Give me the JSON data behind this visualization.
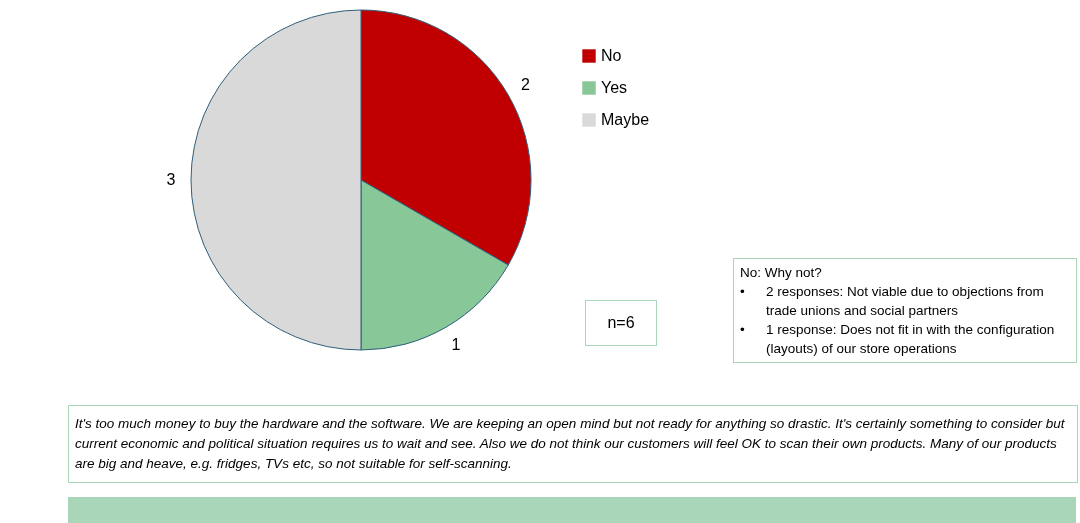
{
  "chart_data": {
    "type": "pie",
    "categories": [
      "No",
      "Yes",
      "Maybe"
    ],
    "values": [
      2,
      1,
      3
    ],
    "colors": [
      "#c00000",
      "#88c797",
      "#d9d9d9"
    ],
    "data_labels": true,
    "legend": "right",
    "annotations": [
      "n=6",
      "No: Why not?\n•\t2 responses: Not viable due to objections from trade unions and social partners\n•\t1 response: Does not fit in with the configuration (layouts) of our store operations",
      "It's too much money to buy the hardware and the software. We are keeping an open mind but not ready for anything so drastic. It's certainly something to consider but current economic and political situation requires us to wait and see. Also we do not think our customers will feel OK to scan their own products. Many of our products are big and heave, e.g. fridges, TVs etc, so not suitable for self-scanning."
    ]
  }
}
